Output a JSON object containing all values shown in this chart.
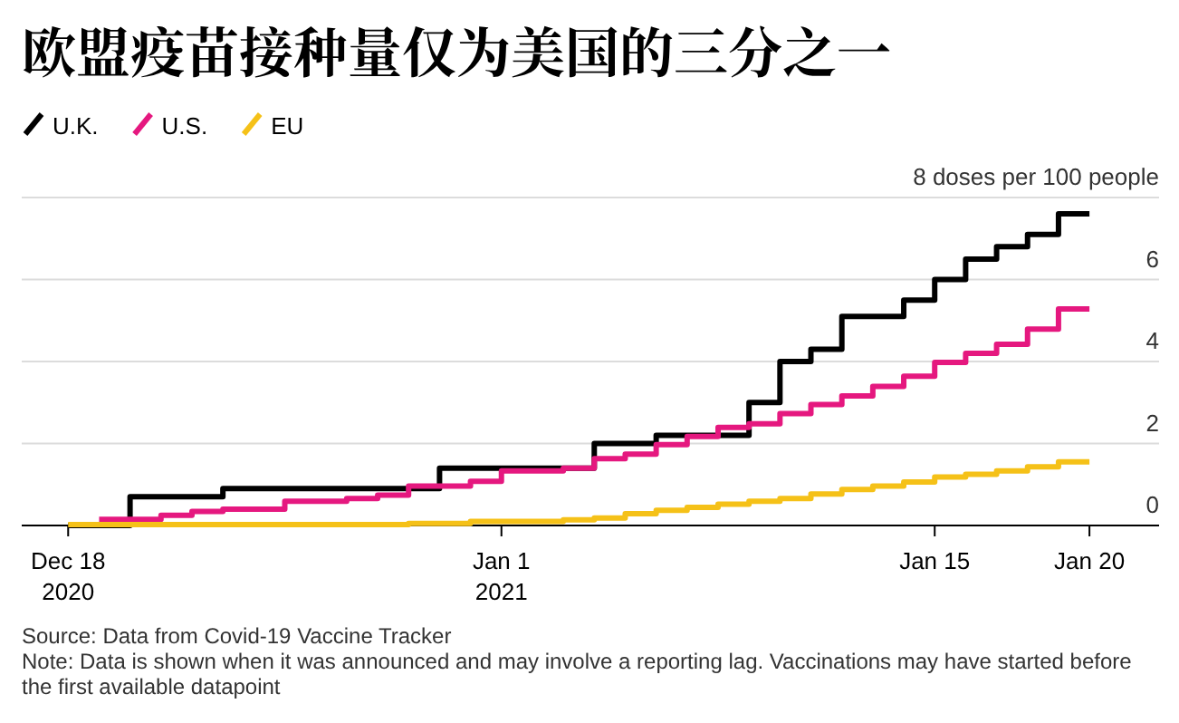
{
  "chart_data": {
    "type": "step",
    "title": "欧盟疫苗接种量仅为美国的三分之一",
    "series": [
      {
        "name": "U.K.",
        "color": "#000000",
        "x": [
          "2020-12-18",
          "2020-12-20",
          "2020-12-23",
          "2020-12-30",
          "2021-01-04",
          "2021-01-06",
          "2021-01-09",
          "2021-01-10",
          "2021-01-11",
          "2021-01-12",
          "2021-01-14",
          "2021-01-15",
          "2021-01-16",
          "2021-01-17",
          "2021-01-18",
          "2021-01-19",
          "2021-01-20"
        ],
        "values": [
          0,
          0.7,
          0.9,
          1.4,
          2.0,
          2.2,
          3.0,
          4.0,
          4.3,
          5.1,
          5.5,
          6.0,
          6.5,
          6.8,
          7.1,
          7.6,
          7.6
        ]
      },
      {
        "name": "U.S.",
        "color": "#e5187f",
        "x": [
          "2020-12-19",
          "2020-12-21",
          "2020-12-22",
          "2020-12-23",
          "2020-12-25",
          "2020-12-27",
          "2020-12-28",
          "2020-12-29",
          "2020-12-31",
          "2021-01-01",
          "2021-01-03",
          "2021-01-04",
          "2021-01-05",
          "2021-01-06",
          "2021-01-07",
          "2021-01-08",
          "2021-01-09",
          "2021-01-10",
          "2021-01-11",
          "2021-01-12",
          "2021-01-13",
          "2021-01-14",
          "2021-01-15",
          "2021-01-16",
          "2021-01-17",
          "2021-01-18",
          "2021-01-19",
          "2021-01-20"
        ],
        "values": [
          0.15,
          0.25,
          0.34,
          0.4,
          0.59,
          0.66,
          0.74,
          0.96,
          1.08,
          1.33,
          1.4,
          1.63,
          1.74,
          1.97,
          2.17,
          2.39,
          2.48,
          2.73,
          2.95,
          3.16,
          3.39,
          3.64,
          3.98,
          4.2,
          4.42,
          4.79,
          5.28,
          5.28
        ]
      },
      {
        "name": "EU",
        "color": "#f5c118",
        "x": [
          "2020-12-18",
          "2020-12-29",
          "2020-12-31",
          "2021-01-03",
          "2021-01-04",
          "2021-01-05",
          "2021-01-06",
          "2021-01-07",
          "2021-01-08",
          "2021-01-09",
          "2021-01-10",
          "2021-01-11",
          "2021-01-12",
          "2021-01-13",
          "2021-01-14",
          "2021-01-15",
          "2021-01-16",
          "2021-01-17",
          "2021-01-18",
          "2021-01-19",
          "2021-01-20"
        ],
        "values": [
          0.02,
          0.05,
          0.1,
          0.14,
          0.18,
          0.29,
          0.37,
          0.44,
          0.52,
          0.59,
          0.66,
          0.77,
          0.88,
          0.96,
          1.06,
          1.18,
          1.25,
          1.33,
          1.43,
          1.55,
          1.55
        ]
      }
    ],
    "xlim": [
      "2020-12-16T12:00",
      "2021-01-22T06:00"
    ],
    "xticks": [
      {
        "value": "2020-12-18",
        "label": "Dec 18\n2020"
      },
      {
        "value": "2021-01-01",
        "label": "Jan 1\n2021"
      },
      {
        "value": "2021-01-15",
        "label": "Jan 15"
      },
      {
        "value": "2021-01-20",
        "label": "Jan 20"
      }
    ],
    "ylim": [
      0,
      8
    ],
    "yticks": [
      0,
      2,
      4,
      6,
      {
        "value": 8,
        "label": "8 doses per 100 people"
      }
    ],
    "grid": "y",
    "legend": "top left",
    "annotations": [
      "Source: Data from Covid-19 Vaccine Tracker",
      "Note: Data is shown when it was announced and may involve a reporting lag. Vaccinations may have started before the first available datapoint"
    ]
  }
}
